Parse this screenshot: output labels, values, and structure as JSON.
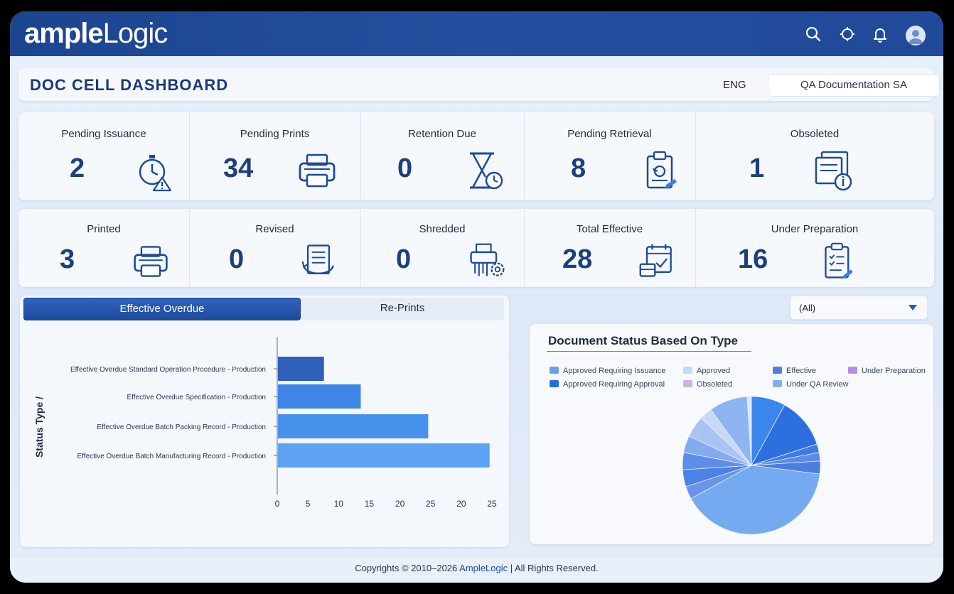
{
  "header": {
    "logo_bold": "ample",
    "logo_light": "Logic",
    "icons": [
      "search-icon",
      "target-icon",
      "bell-icon",
      "user-avatar-icon"
    ]
  },
  "titlebar": {
    "title": "DOC CELL DASHBOARD",
    "language": "ENG",
    "department": "QA Documentation SA"
  },
  "stats_row1": [
    {
      "label": "Pending Issuance",
      "value": "2",
      "icon": "stopwatch-warning-icon"
    },
    {
      "label": "Pending Prints",
      "value": "34",
      "icon": "printer-icon"
    },
    {
      "label": "Retention Due",
      "value": "0",
      "icon": "hourglass-clock-icon"
    },
    {
      "label": "Pending Retrieval",
      "value": "8",
      "icon": "clipboard-retrieval-icon"
    },
    {
      "label": "Obsoleted",
      "value": "1",
      "icon": "documents-info-icon"
    }
  ],
  "stats_row2": [
    {
      "label": "Printed",
      "value": "3",
      "icon": "printer-icon"
    },
    {
      "label": "Revised",
      "value": "0",
      "icon": "document-revise-icon"
    },
    {
      "label": "Shredded",
      "value": "0",
      "icon": "shredder-gear-icon"
    },
    {
      "label": "Total Effective",
      "value": "28",
      "icon": "calendar-check-icon"
    },
    {
      "label": "Under Preparation",
      "value": "16",
      "icon": "checklist-icon"
    }
  ],
  "tabs": {
    "active": "Effective Overdue",
    "inactive": "Re-Prints"
  },
  "filter": {
    "selected": "(All)"
  },
  "pie_panel": {
    "title": "Document Status Based On Type"
  },
  "footer": {
    "prefix": "Copyrights © 2010–2026 ",
    "brand": "AmpleLogic",
    "suffix": " | All Rights Reserved."
  },
  "colors": {
    "header": "#1f4996",
    "accent": "#1d4a9a",
    "bar_dark": "#2a5bb5",
    "bar_light": "#5b9ef0"
  },
  "chart_data": [
    {
      "type": "bar",
      "orientation": "horizontal",
      "categories": [
        "Effective Overdue Standard Operation Procedure - Production",
        "Effective Overdue Specification - Production",
        "Effective Overdue Batch Packing Record - Production",
        "Effective Overdue Batch Manufacturing Record - Production"
      ],
      "values": [
        7.5,
        13.5,
        24.5,
        34.5
      ],
      "ylabel": "Status Type /",
      "xlabel": "",
      "x_ticks": [
        "0",
        "5",
        "10",
        "15",
        "20",
        "25",
        "20",
        "25"
      ],
      "xlim": [
        0,
        35
      ],
      "grid": false
    },
    {
      "type": "pie",
      "title": "Document Status Based On Type",
      "legend": [
        {
          "name": "Approved Requiring Issuance",
          "color": "#6a9ee8"
        },
        {
          "name": "Approved",
          "color": "#c8d9f5"
        },
        {
          "name": "Effective",
          "color": "#4f7fd6"
        },
        {
          "name": "Under Preparation",
          "color": "#b48ee0"
        },
        {
          "name": "Approved Requiring Approval",
          "color": "#1f6fe0"
        },
        {
          "name": "Obsoleted",
          "color": "#cbb2e6"
        },
        {
          "name": "Under QA Review",
          "color": "#7eb0f2"
        }
      ],
      "slices": [
        {
          "value": 8,
          "color": "#3a86ec"
        },
        {
          "value": 12,
          "color": "#2e6fe0"
        },
        {
          "value": 2,
          "color": "#3e7be2"
        },
        {
          "value": 2,
          "color": "#5a8ce6"
        },
        {
          "value": 3,
          "color": "#4a7fe0"
        },
        {
          "value": 40,
          "color": "#74aaf0"
        },
        {
          "value": 3,
          "color": "#6a94ea"
        },
        {
          "value": 4,
          "color": "#4c82e6"
        },
        {
          "value": 4,
          "color": "#5c8ee8"
        },
        {
          "value": 4,
          "color": "#86aaee"
        },
        {
          "value": 5,
          "color": "#a9c3f3"
        },
        {
          "value": 3,
          "color": "#c9d8f6"
        },
        {
          "value": 9,
          "color": "#8eb4f2"
        },
        {
          "value": 1,
          "color": "#dde7f8"
        }
      ],
      "legend_placement": "top"
    }
  ]
}
